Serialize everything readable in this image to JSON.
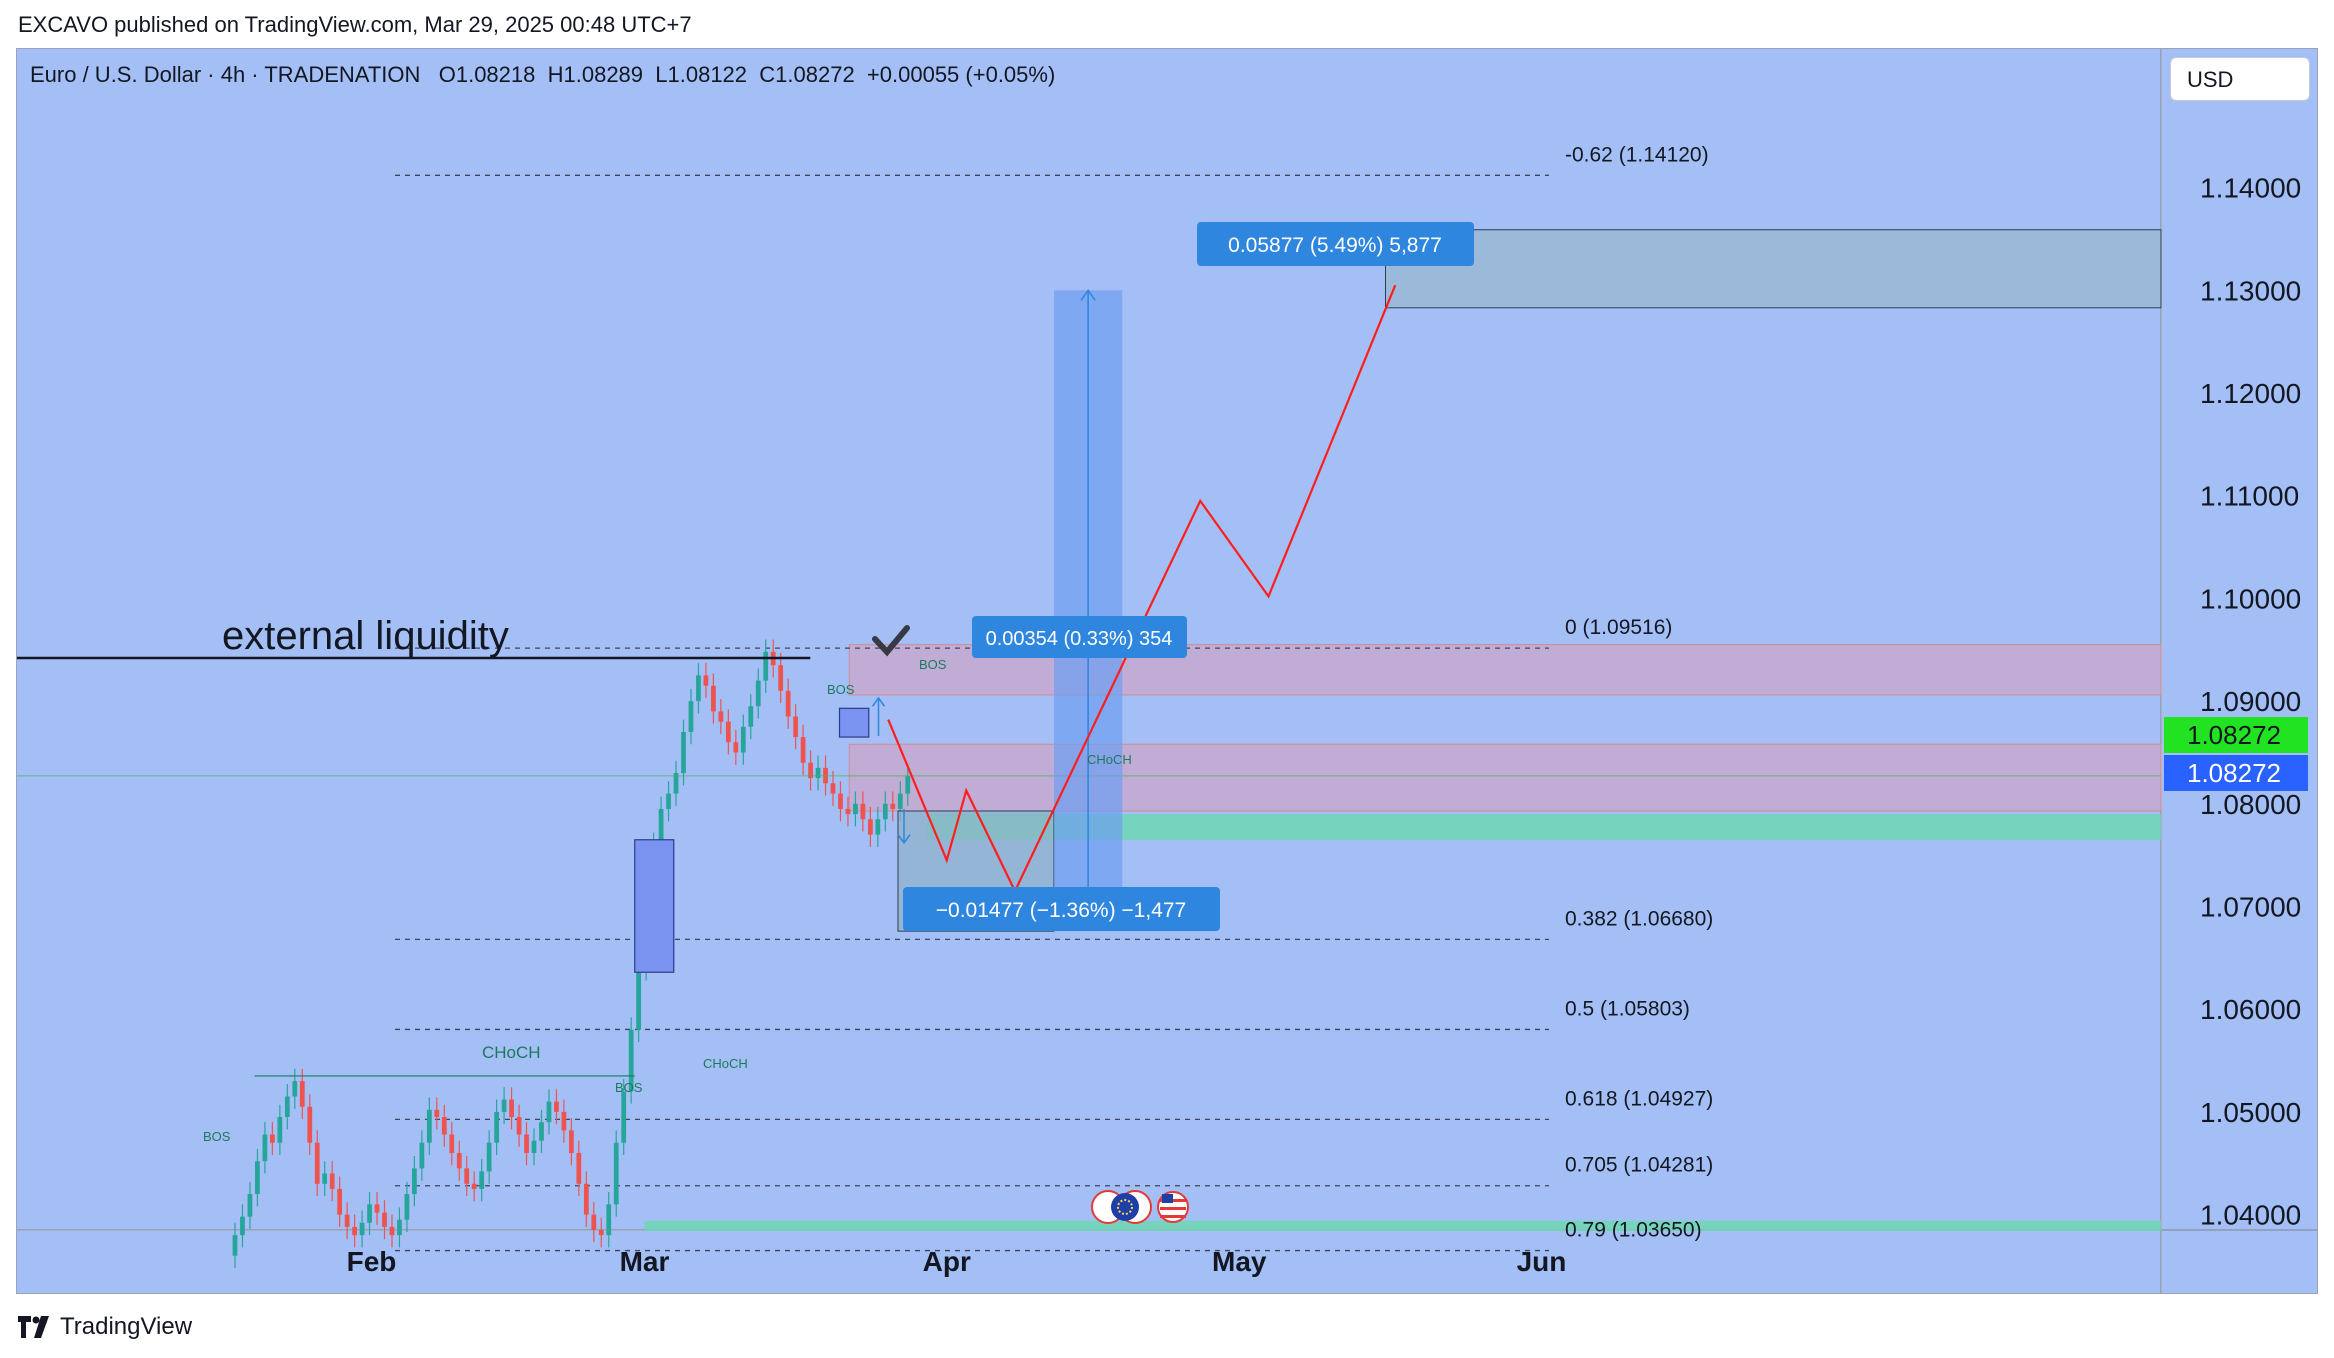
{
  "header": {
    "published_by": "EXCAVO published on TradingView.com, Mar 29, 2025 00:48 UTC+7"
  },
  "symbol": {
    "name": "Euro / U.S. Dollar · 4h · TRADENATION",
    "open": "O1.08218",
    "high": "H1.08289",
    "low": "L1.08122",
    "close": "C1.08272",
    "change": "+0.00055 (+0.05%)"
  },
  "currency_button": "USD",
  "footer": {
    "brand": "TradingView"
  },
  "colors": {
    "background": "#a4bff5",
    "bull": "#26a69a",
    "bear": "#ef5350",
    "projection": "#ff1e1e",
    "last_price_green": "#22e322",
    "last_price_blue": "#2962ff",
    "label_blue": "#2e86de"
  },
  "chart_data": {
    "type": "candlestick",
    "y_axis": {
      "ticks": [
        "1.14000",
        "1.13000",
        "1.12000",
        "1.11000",
        "1.10000",
        "1.09000",
        "1.08000",
        "1.07000",
        "1.06000",
        "1.05000",
        "1.04000"
      ],
      "range": [
        1.0385,
        1.1535
      ]
    },
    "x_axis": {
      "ticks": [
        "Feb",
        "Mar",
        "Apr",
        "May",
        "Jun"
      ]
    },
    "last_price": {
      "value": 1.08272,
      "labels": [
        "1.08272",
        "1.08272"
      ]
    },
    "fibonacci": [
      {
        "label": "-0.62 (1.14120)",
        "value": 1.1412
      },
      {
        "label": "0 (1.09516)",
        "value": 1.09516
      },
      {
        "label": "0.382 (1.06680)",
        "value": 1.0668
      },
      {
        "label": "0.5 (1.05803)",
        "value": 1.05803
      },
      {
        "label": "0.618 (1.04927)",
        "value": 1.04927
      },
      {
        "label": "0.705 (1.04281)",
        "value": 1.04281
      },
      {
        "label": "0.79 (1.03650)",
        "value": 1.0365
      }
    ],
    "annotations": {
      "external_liquidity": "external liquidity",
      "choch": "CHoCH",
      "bos": "BOS",
      "measure_long": "0.05877 (5.49%) 5,877",
      "measure_small": "0.00354 (0.33%) 354",
      "measure_short": "−0.01477 (−1.36%) −1,477"
    },
    "zones": [
      {
        "kind": "target",
        "from": 1.1283,
        "to": 1.1359
      },
      {
        "kind": "supply",
        "from": 1.0906,
        "to": 1.0955
      },
      {
        "kind": "supply",
        "from": 1.0793,
        "to": 1.0858
      },
      {
        "kind": "demand",
        "from": 1.0765,
        "to": 1.079
      },
      {
        "kind": "demand",
        "from": 1.0384,
        "to": 1.0394
      }
    ],
    "projection_path": [
      [
        1.0882,
        "2025-03-26"
      ],
      [
        1.0745,
        "2025-04-01"
      ],
      [
        1.0813,
        "2025-04-03"
      ],
      [
        1.0715,
        "2025-04-08"
      ],
      [
        1.1095,
        "2025-04-27"
      ],
      [
        1.1002,
        "2025-05-04"
      ],
      [
        1.1305,
        "2025-05-17"
      ]
    ],
    "candles_close": [
      1.038,
      1.0398,
      1.042,
      1.0452,
      1.0478,
      1.047,
      1.0495,
      1.0515,
      1.053,
      1.0505,
      1.047,
      1.043,
      1.044,
      1.0425,
      1.04,
      1.0388,
      1.038,
      1.0392,
      1.041,
      1.0402,
      1.0388,
      1.038,
      1.0395,
      1.042,
      1.0445,
      1.047,
      1.0502,
      1.0495,
      1.0478,
      1.046,
      1.0445,
      1.043,
      1.0425,
      1.0442,
      1.047,
      1.05,
      1.0512,
      1.0495,
      1.0478,
      1.046,
      1.0472,
      1.049,
      1.051,
      1.05,
      1.0482,
      1.046,
      1.043,
      1.04,
      1.0385,
      1.038,
      1.041,
      1.047,
      1.052,
      1.058,
      1.064,
      1.07,
      1.076,
      1.0795,
      1.081,
      1.083,
      1.087,
      1.09,
      1.0925,
      1.0915,
      1.089,
      1.088,
      1.086,
      1.085,
      1.0875,
      1.0895,
      1.092,
      1.0948,
      1.0935,
      1.091,
      1.0885,
      1.0865,
      1.084,
      1.0825,
      1.0835,
      1.082,
      1.081,
      1.0795,
      1.079,
      1.08,
      1.0785,
      1.077,
      1.0785,
      1.08,
      1.0795,
      1.081,
      1.0827
    ]
  }
}
